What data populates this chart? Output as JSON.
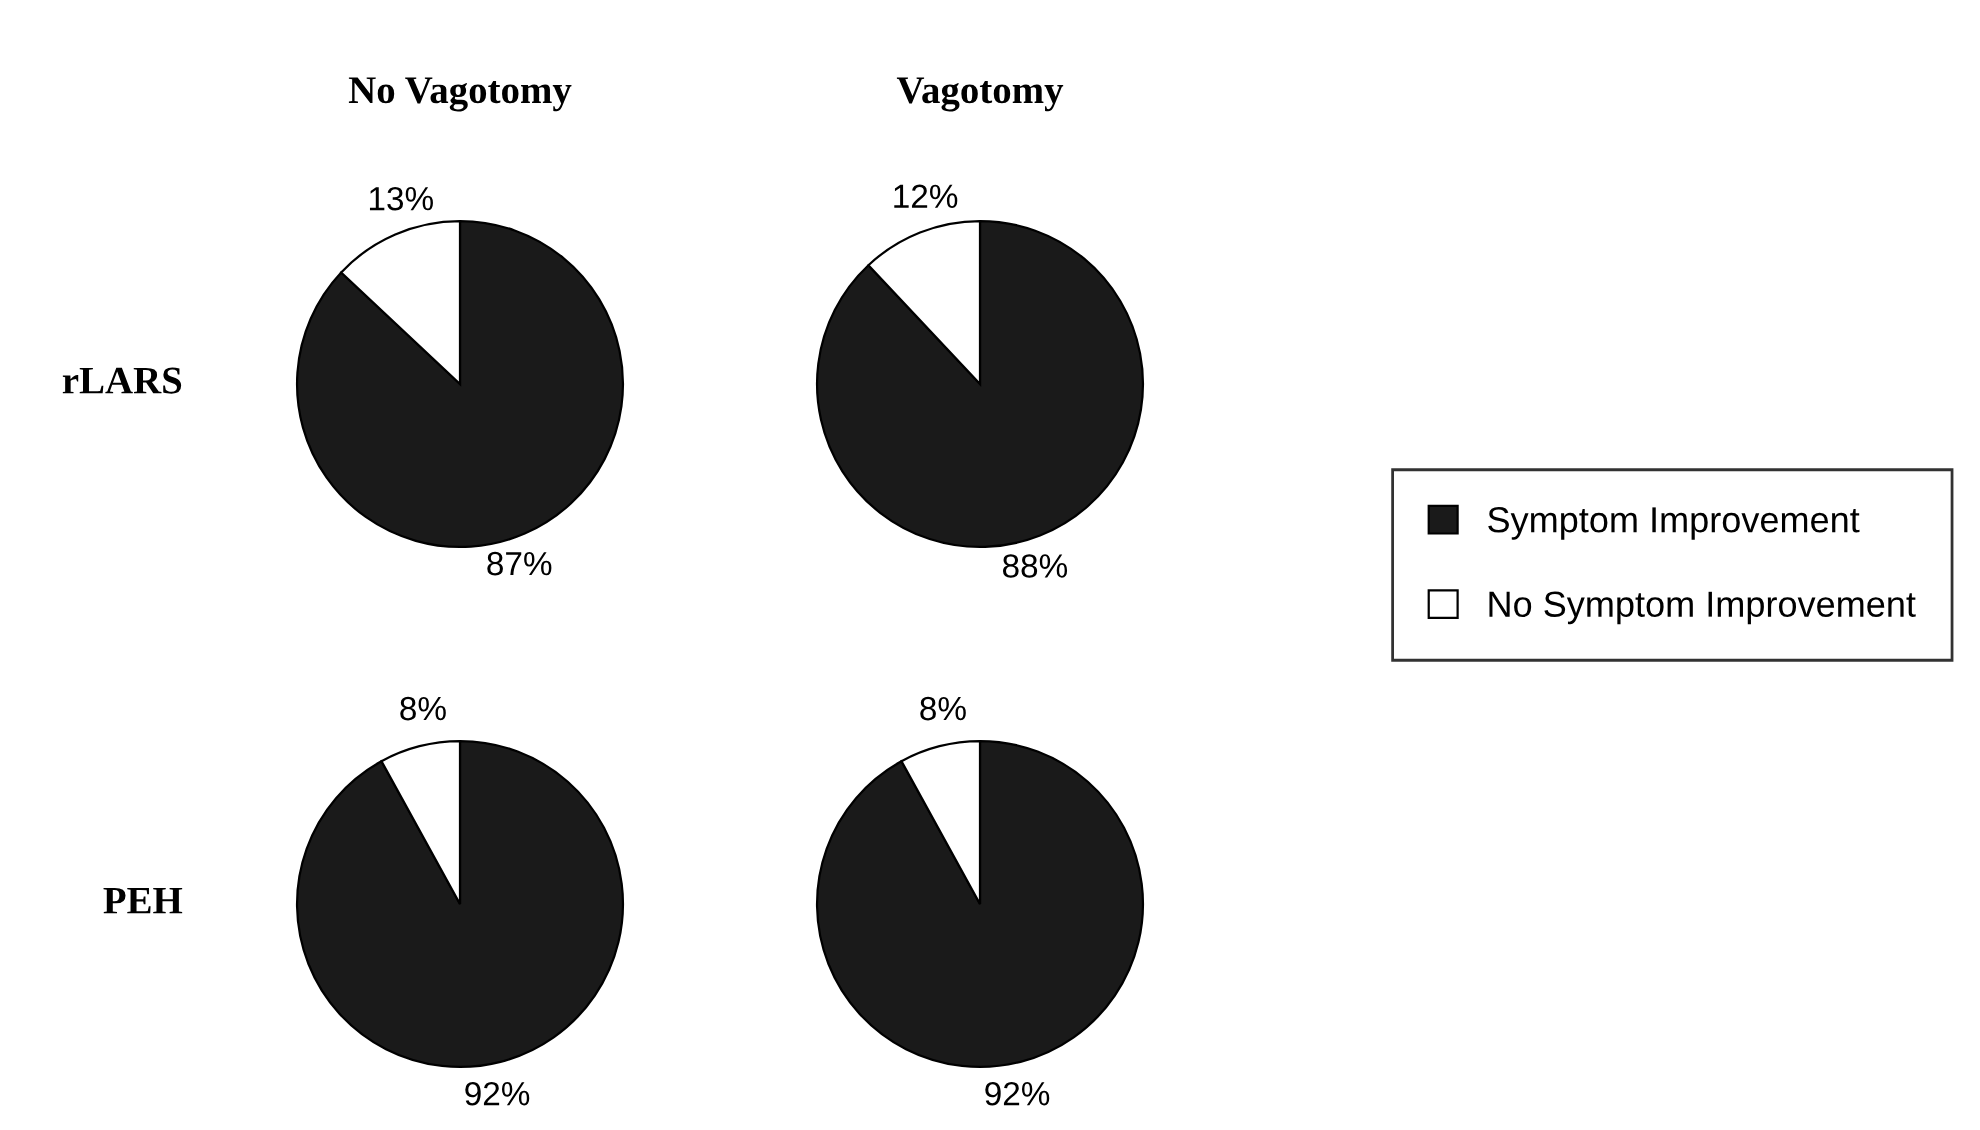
{
  "chart_data": [
    {
      "type": "pie",
      "title": "No Vagotomy",
      "ylabel": "rLARS",
      "categories": [
        "Symptom Improvement",
        "No Symptom Improvement"
      ],
      "values": [
        87,
        13
      ],
      "colors": [
        "#1a1a1a",
        "#ffffff"
      ],
      "value_labels": [
        "87%",
        "13%"
      ],
      "legend": "right"
    },
    {
      "type": "pie",
      "title": "Vagotomy",
      "categories": [
        null,
        null
      ],
      "values": [
        88,
        12
      ],
      "colors": [
        "#1a1a1a",
        "#ffffff"
      ],
      "value_labels": [
        "88%",
        "12%"
      ]
    },
    {
      "type": "pie",
      "ylabel": "PEH",
      "categories": [
        null,
        null
      ],
      "values": [
        92,
        8
      ],
      "colors": [
        "#1a1a1a",
        "#ffffff"
      ],
      "value_labels": [
        "92%",
        "8%"
      ]
    },
    {
      "type": "pie",
      "categories": [
        null,
        null
      ],
      "values": [
        92,
        8
      ],
      "colors": [
        "#1a1a1a",
        "#ffffff"
      ],
      "value_labels": [
        "92%",
        "8%"
      ]
    }
  ]
}
